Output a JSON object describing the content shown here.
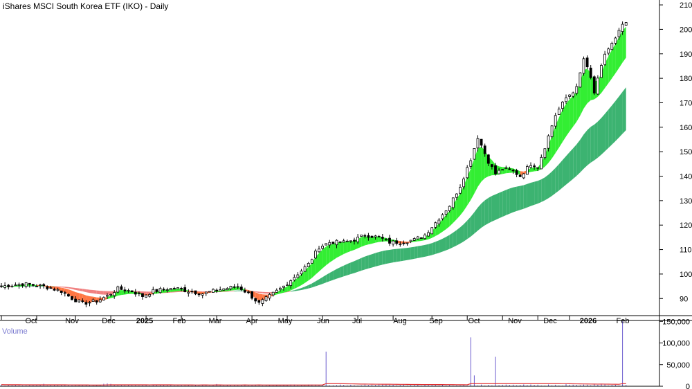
{
  "chart_data": {
    "type": "candlestick",
    "title": "iShares MSCI South Korea ETF (IKO) - Daily",
    "x_ticks": [
      "Oct",
      "Nov",
      "Dec",
      "2025",
      "Feb",
      "Mar",
      "Apr",
      "May",
      "Jun",
      "Jul",
      "Aug",
      "Sep",
      "Oct",
      "Nov",
      "Dec",
      "2026",
      "Feb"
    ],
    "price_axis": {
      "ticks": [
        90,
        100,
        110,
        120,
        130,
        140,
        150,
        160,
        170,
        180,
        190,
        200,
        210
      ],
      "ylim": [
        83,
        212
      ]
    },
    "volume_panel": {
      "label": "Volume",
      "ticks": [
        0,
        50000,
        100000,
        150000
      ],
      "tick_labels": [
        "0",
        "50,000",
        "100,000",
        "150,000"
      ],
      "ylim": [
        0,
        152000
      ]
    },
    "close_path": [
      [
        0,
        95
      ],
      [
        6,
        96
      ],
      [
        12,
        95
      ],
      [
        17,
        93
      ],
      [
        20,
        90
      ],
      [
        23,
        88
      ],
      [
        27,
        89
      ],
      [
        30,
        91
      ],
      [
        33,
        94
      ],
      [
        37,
        93
      ],
      [
        40,
        91
      ],
      [
        43,
        93
      ],
      [
        47,
        94
      ],
      [
        50,
        94
      ],
      [
        53,
        93
      ],
      [
        57,
        92
      ],
      [
        60,
        93
      ],
      [
        63,
        94
      ],
      [
        67,
        95
      ],
      [
        70,
        92
      ],
      [
        73,
        88
      ],
      [
        77,
        92
      ],
      [
        80,
        95
      ],
      [
        87,
        104
      ],
      [
        90,
        111
      ],
      [
        93,
        113
      ],
      [
        97,
        113
      ],
      [
        100,
        114
      ],
      [
        103,
        116
      ],
      [
        107,
        115
      ],
      [
        110,
        113
      ],
      [
        113,
        113
      ],
      [
        117,
        114
      ],
      [
        120,
        116
      ],
      [
        123,
        121
      ],
      [
        127,
        128
      ],
      [
        130,
        136
      ],
      [
        133,
        147
      ],
      [
        135,
        156
      ],
      [
        138,
        146
      ],
      [
        140,
        141
      ],
      [
        142,
        143
      ],
      [
        145,
        142
      ],
      [
        147,
        140
      ],
      [
        150,
        145
      ],
      [
        152,
        144
      ],
      [
        154,
        152
      ],
      [
        157,
        165
      ],
      [
        160,
        172
      ],
      [
        163,
        176
      ],
      [
        165,
        188
      ],
      [
        167,
        180
      ],
      [
        168,
        174
      ],
      [
        171,
        190
      ],
      [
        174,
        196
      ],
      [
        176,
        202
      ]
    ],
    "moving_average_bands": [
      {
        "name": "short-term",
        "color_up": "#33ee33",
        "color_down": "#ff7744"
      },
      {
        "name": "long-term",
        "color_up": "#3cb371",
        "color_down": "#f08080"
      }
    ],
    "volume_spikes": [
      {
        "day": 92,
        "value": 80000
      },
      {
        "day": 133,
        "value": 113000
      },
      {
        "day": 134,
        "value": 25000
      },
      {
        "day": 140,
        "value": 68000
      },
      {
        "day": 176,
        "value": 150000
      }
    ],
    "colors": {
      "candle": "#000000",
      "volume_bar": "#6a5acd",
      "volume_ma": "#e03030",
      "grid": "#000000",
      "axis_label_volume": "#7b7bd0"
    }
  }
}
